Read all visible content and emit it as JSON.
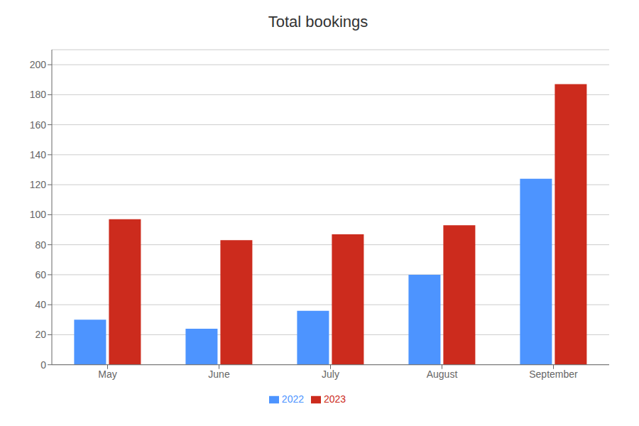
{
  "chart_data": {
    "type": "bar",
    "title": "Total bookings",
    "categories": [
      "May",
      "June",
      "July",
      "August",
      "September"
    ],
    "series": [
      {
        "name": "2022",
        "color": "#4d94ff",
        "values": [
          30,
          24,
          36,
          60,
          124
        ]
      },
      {
        "name": "2023",
        "color": "#cc2b1d",
        "values": [
          97,
          83,
          87,
          93,
          187
        ]
      }
    ],
    "ylim": [
      0,
      210
    ],
    "yticks": [
      0,
      20,
      40,
      60,
      80,
      100,
      120,
      140,
      160,
      180,
      200
    ],
    "grid": true,
    "legend": "bottom"
  }
}
